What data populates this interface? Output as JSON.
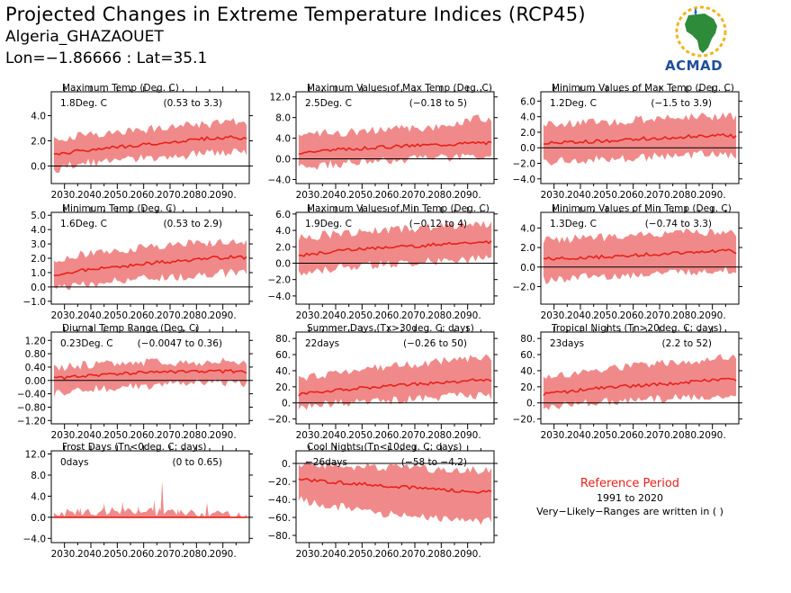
{
  "header": {
    "title": "Projected Changes in Extreme Temperature Indices (RCP45)",
    "station": "Algeria_GHAZAOUET",
    "coords": "Lon=−1.86666 : Lat=35.1"
  },
  "logo": {
    "text": "ACMAD"
  },
  "reference": {
    "title": "Reference Period",
    "years": "1991 to 2020",
    "note": "Very−Likely−Ranges are written in ( )"
  },
  "colors": {
    "band": "#f08a8a",
    "line": "#e8211b",
    "zero": "#000000"
  },
  "x_ticks": [
    "2030.",
    "2040.",
    "2050.",
    "2060.",
    "2070.",
    "2080.",
    "2090."
  ],
  "chart_data": [
    {
      "type": "line",
      "title": "Maximum Temp (Deg. C)",
      "change": "1.8Deg. C",
      "range": "(0.53 to 3.3)",
      "xlim": [
        2025,
        2100
      ],
      "ylim": [
        -1.4,
        5.9
      ],
      "yticks": [
        0,
        2,
        4
      ],
      "ytick_labels": [
        "0.0",
        "2.0",
        "4.0"
      ],
      "x": [
        2025,
        2035,
        2045,
        2055,
        2065,
        2075,
        2085,
        2095,
        2100
      ],
      "median": [
        0.8,
        1.2,
        1.4,
        1.6,
        1.8,
        2.0,
        2.2,
        2.3,
        2.1
      ],
      "lower": [
        -0.4,
        0.2,
        0.3,
        0.5,
        0.7,
        0.8,
        1.1,
        1.1,
        1.0
      ],
      "upper": [
        2.1,
        2.4,
        2.6,
        2.8,
        3.0,
        3.4,
        3.3,
        3.5,
        3.3
      ]
    },
    {
      "type": "line",
      "title": "Maximum Values of Max Temp (Deg. C)",
      "change": "2.5Deg. C",
      "range": "(−0.18 to 5)",
      "xlim": [
        2025,
        2100
      ],
      "ylim": [
        -4.8,
        13.0
      ],
      "yticks": [
        -4,
        0,
        4,
        8,
        12
      ],
      "ytick_labels": [
        "−4.0",
        "0.0",
        "4.0",
        "8.0",
        "12.0"
      ],
      "x": [
        2025,
        2035,
        2045,
        2055,
        2065,
        2075,
        2085,
        2095,
        2100
      ],
      "median": [
        1.2,
        1.6,
        1.9,
        2.2,
        2.5,
        2.7,
        2.9,
        3.2,
        3.0
      ],
      "lower": [
        -1.8,
        -1.2,
        -0.8,
        -0.4,
        -0.2,
        0.1,
        0.2,
        0.4,
        0.3
      ],
      "upper": [
        4.5,
        5.0,
        5.2,
        5.5,
        5.8,
        6.0,
        6.6,
        8.0,
        7.0
      ]
    },
    {
      "type": "line",
      "title": "Minimum Values of Max Temp (Deg. C)",
      "change": "1.2Deg. C",
      "range": "(−1.5 to 3.9)",
      "xlim": [
        2025,
        2100
      ],
      "ylim": [
        -4.6,
        7.2
      ],
      "yticks": [
        -4,
        -2,
        0,
        2,
        4,
        6
      ],
      "ytick_labels": [
        "−4.0",
        "−2.0",
        "0.0",
        "2.0",
        "4.0",
        "6.0"
      ],
      "x": [
        2025,
        2035,
        2045,
        2055,
        2065,
        2075,
        2085,
        2095,
        2100
      ],
      "median": [
        0.6,
        0.7,
        0.8,
        1.0,
        1.2,
        1.3,
        1.5,
        1.6,
        1.4
      ],
      "lower": [
        -1.8,
        -1.6,
        -1.5,
        -1.4,
        -1.2,
        -1.0,
        -0.9,
        -0.8,
        -0.9
      ],
      "upper": [
        3.0,
        3.1,
        3.2,
        3.4,
        3.7,
        3.8,
        4.0,
        4.2,
        4.0
      ]
    },
    {
      "type": "line",
      "title": "Minimum Temp (Deg. C)",
      "change": "1.6Deg. C",
      "range": "(0.53 to 2.9)",
      "xlim": [
        2025,
        2100
      ],
      "ylim": [
        -1.2,
        5.2
      ],
      "yticks": [
        -1,
        0,
        1,
        2,
        3,
        4,
        5
      ],
      "ytick_labels": [
        "−1.0",
        "0.0",
        "1.0",
        "2.0",
        "3.0",
        "4.0",
        "5.0"
      ],
      "x": [
        2025,
        2035,
        2045,
        2055,
        2065,
        2075,
        2085,
        2095,
        2100
      ],
      "median": [
        0.8,
        1.1,
        1.3,
        1.5,
        1.7,
        1.8,
        2.0,
        2.1,
        2.0
      ],
      "lower": [
        -0.2,
        0.1,
        0.3,
        0.5,
        0.6,
        0.7,
        0.9,
        1.0,
        0.9
      ],
      "upper": [
        1.9,
        2.2,
        2.4,
        2.6,
        2.8,
        3.0,
        3.1,
        3.2,
        3.1
      ]
    },
    {
      "type": "line",
      "title": "Maximum Values of Min Temp (Deg. C)",
      "change": "1.9Deg. C",
      "range": "(−0.12 to 4)",
      "xlim": [
        2025,
        2100
      ],
      "ylim": [
        -5.0,
        6.2
      ],
      "yticks": [
        -4,
        -2,
        0,
        2,
        4,
        6
      ],
      "ytick_labels": [
        "−4.0",
        "−2.0",
        "0.0",
        "2.0",
        "4.0",
        "6.0"
      ],
      "x": [
        2025,
        2035,
        2045,
        2055,
        2065,
        2075,
        2085,
        2095,
        2100
      ],
      "median": [
        0.9,
        1.3,
        1.6,
        1.8,
        2.0,
        2.2,
        2.4,
        2.6,
        2.5
      ],
      "lower": [
        -1.4,
        -0.8,
        -0.4,
        -0.2,
        0.0,
        0.2,
        0.3,
        0.5,
        0.4
      ],
      "upper": [
        3.0,
        3.4,
        3.7,
        3.9,
        4.1,
        4.4,
        4.6,
        4.8,
        4.6
      ]
    },
    {
      "type": "line",
      "title": "Minimum Values of Min Temp (Deg. C)",
      "change": "1.3Deg. C",
      "range": "(−0.74 to 3.3)",
      "xlim": [
        2025,
        2100
      ],
      "ylim": [
        -3.8,
        5.6
      ],
      "yticks": [
        -2,
        0,
        2,
        4
      ],
      "ytick_labels": [
        "−2.0",
        "0.0",
        "2.0",
        "4.0"
      ],
      "x": [
        2025,
        2035,
        2045,
        2055,
        2065,
        2075,
        2085,
        2095,
        2100
      ],
      "median": [
        0.8,
        0.9,
        1.0,
        1.1,
        1.3,
        1.4,
        1.6,
        1.7,
        1.5
      ],
      "lower": [
        -1.4,
        -1.2,
        -1.0,
        -0.9,
        -0.7,
        -0.6,
        -0.4,
        -0.3,
        -0.4
      ],
      "upper": [
        2.8,
        2.9,
        3.0,
        3.1,
        3.3,
        3.4,
        3.6,
        3.7,
        3.5
      ]
    },
    {
      "type": "line",
      "title": "Diurnal Temp Range (Deg. C)",
      "change": "0.23Deg. C",
      "range": "(−0.0047 to 0.36)",
      "xlim": [
        2025,
        2100
      ],
      "ylim": [
        -1.3,
        1.45
      ],
      "yticks": [
        -1.2,
        -0.8,
        -0.4,
        0,
        0.4,
        0.8,
        1.2
      ],
      "ytick_labels": [
        "−1.20",
        "−0.80",
        "−0.40",
        "0.00",
        "0.40",
        "0.80",
        "1.20"
      ],
      "x": [
        2025,
        2035,
        2045,
        2055,
        2065,
        2075,
        2085,
        2095,
        2100
      ],
      "median": [
        0.05,
        0.12,
        0.18,
        0.22,
        0.24,
        0.25,
        0.26,
        0.28,
        0.25
      ],
      "lower": [
        -0.4,
        -0.3,
        -0.25,
        -0.2,
        -0.15,
        -0.1,
        -0.05,
        -0.05,
        -0.1
      ],
      "upper": [
        0.35,
        0.45,
        0.5,
        0.55,
        0.55,
        0.55,
        0.55,
        0.6,
        0.55
      ]
    },
    {
      "type": "line",
      "title": "Summer Days (Tx>30deg. C; days)",
      "change": "22days",
      "range": "(−0.26 to 50)",
      "xlim": [
        2025,
        2100
      ],
      "ylim": [
        -26,
        88
      ],
      "yticks": [
        -20,
        0,
        20,
        40,
        60,
        80
      ],
      "ytick_labels": [
        "−20.",
        "0.",
        "20.",
        "40.",
        "60.",
        "80."
      ],
      "x": [
        2025,
        2035,
        2045,
        2055,
        2065,
        2075,
        2085,
        2095,
        2100
      ],
      "median": [
        10,
        14,
        17,
        20,
        22,
        24,
        26,
        29,
        28
      ],
      "lower": [
        -5,
        -2,
        0,
        2,
        4,
        6,
        8,
        10,
        9
      ],
      "upper": [
        30,
        35,
        40,
        44,
        47,
        50,
        53,
        56,
        54
      ]
    },
    {
      "type": "line",
      "title": "Tropical Nights (Tn>20deg. C; days)",
      "change": "23days",
      "range": "(2.2 to 52)",
      "xlim": [
        2025,
        2100
      ],
      "ylim": [
        -26,
        88
      ],
      "yticks": [
        -20,
        0,
        20,
        40,
        60,
        80
      ],
      "ytick_labels": [
        "−20.",
        "0.",
        "20.",
        "40.",
        "60.",
        "80."
      ],
      "x": [
        2025,
        2035,
        2045,
        2055,
        2065,
        2075,
        2085,
        2095,
        2100
      ],
      "median": [
        10,
        14,
        18,
        20,
        22,
        24,
        27,
        30,
        28
      ],
      "lower": [
        -5,
        -2,
        0,
        2,
        4,
        6,
        8,
        10,
        9
      ],
      "upper": [
        30,
        36,
        40,
        44,
        47,
        50,
        53,
        57,
        55
      ]
    },
    {
      "type": "line",
      "title": "Frost Days (Tn<0deg. C; days)",
      "change": "0days",
      "range": "(0 to 0.65)",
      "xlim": [
        2025,
        2100
      ],
      "ylim": [
        -4.8,
        12.6
      ],
      "yticks": [
        -4,
        0,
        4,
        8,
        12
      ],
      "ytick_labels": [
        "−4.0",
        "0.0",
        "4.0",
        "8.0",
        "12.0"
      ],
      "x": [
        2025,
        2035,
        2045,
        2055,
        2065,
        2075,
        2085,
        2095,
        2100
      ],
      "median": [
        0,
        0,
        0,
        0,
        0,
        0,
        0,
        0,
        0
      ],
      "lower": [
        0,
        0,
        0,
        0,
        0,
        0,
        0,
        0,
        0
      ],
      "upper": [
        0.8,
        1.0,
        1.2,
        1.5,
        1.0,
        0.8,
        0.6,
        0.5,
        0.4
      ],
      "spikes": [
        {
          "x": 2036,
          "y": 1.8
        },
        {
          "x": 2045,
          "y": 2.8
        },
        {
          "x": 2052,
          "y": 3.0
        },
        {
          "x": 2058,
          "y": 2.2
        },
        {
          "x": 2064,
          "y": 3.2
        },
        {
          "x": 2067,
          "y": 7.0
        },
        {
          "x": 2073,
          "y": 1.6
        },
        {
          "x": 2084,
          "y": 2.8
        }
      ]
    },
    {
      "type": "line",
      "title": "Cool Nights (Tn<10deg. C; days)",
      "change": "−26days",
      "range": "(−58 to −4.2)",
      "xlim": [
        2025,
        2100
      ],
      "ylim": [
        -88,
        14
      ],
      "yticks": [
        -80,
        -60,
        -40,
        -20,
        0
      ],
      "ytick_labels": [
        "−80.",
        "−60.",
        "−40.",
        "−20.",
        "0."
      ],
      "x": [
        2025,
        2035,
        2045,
        2055,
        2065,
        2075,
        2085,
        2095,
        2100
      ],
      "median": [
        -17,
        -20,
        -22,
        -24,
        -26,
        -28,
        -30,
        -32,
        -31
      ],
      "lower": [
        -40,
        -45,
        -50,
        -55,
        -58,
        -60,
        -62,
        -64,
        -62
      ],
      "upper": [
        0,
        -2,
        -3,
        -4,
        -5,
        -6,
        -7,
        -8,
        -7
      ]
    }
  ]
}
